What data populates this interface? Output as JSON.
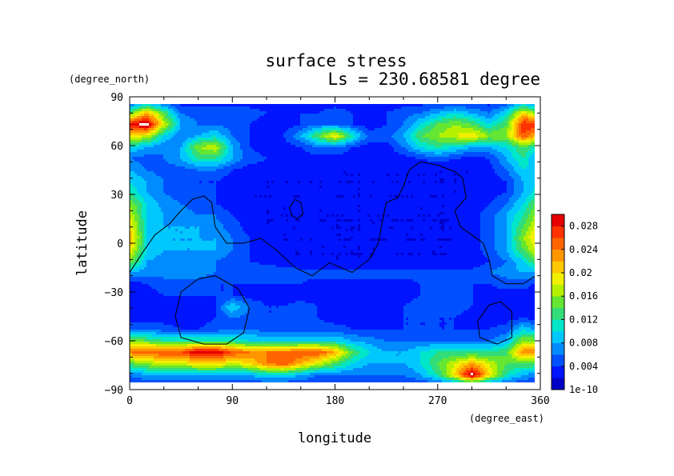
{
  "chart_data": {
    "type": "heatmap",
    "title": "surface stress",
    "subtitle": "Ls = 230.68581 degree",
    "xlabel": "longitude",
    "ylabel": "latitude",
    "x_unit": "(degree_east)",
    "y_unit": "(degree_north)",
    "xlim": [
      0,
      360
    ],
    "ylim": [
      -90,
      90
    ],
    "x_ticks": [
      "0",
      "90",
      "180",
      "270",
      "360"
    ],
    "y_ticks": [
      "90",
      "60",
      "30",
      "0",
      "−30",
      "−60",
      "−90"
    ],
    "x_tick_values": [
      0,
      90,
      180,
      270,
      360
    ],
    "y_tick_values": [
      90,
      60,
      30,
      0,
      -30,
      -60,
      -90
    ],
    "colorbar": {
      "min": 1e-10,
      "max": 0.03,
      "tick_labels": [
        "1e-10",
        "0.004",
        "0.008",
        "0.012",
        "0.016",
        "0.02",
        "0.024",
        "0.028"
      ],
      "tick_values": [
        0,
        0.004,
        0.008,
        0.012,
        0.016,
        0.02,
        0.024,
        0.028
      ]
    },
    "colors": [
      "#0000c8",
      "#0014ff",
      "#0050ff",
      "#008cff",
      "#00c8ff",
      "#00e6c8",
      "#32dc78",
      "#64e632",
      "#b4f000",
      "#f0f000",
      "#ffc800",
      "#ff9600",
      "#ff6400",
      "#ff3200",
      "#e60000",
      "#ffffff"
    ],
    "lat": [
      87,
      80,
      73,
      66,
      59,
      52,
      45,
      38,
      31,
      24,
      17,
      10,
      3,
      -4,
      -11,
      -18,
      -25,
      -32,
      -39,
      -46,
      -53,
      -60,
      -67,
      -74,
      -81,
      -87
    ],
    "lon": [
      0,
      15,
      30,
      45,
      60,
      75,
      90,
      105,
      120,
      135,
      150,
      165,
      180,
      195,
      210,
      225,
      240,
      255,
      270,
      285,
      300,
      315,
      330,
      345,
      360
    ],
    "z": [
      [
        0.004,
        0.006,
        0.004,
        0.003,
        0.003,
        0.003,
        0.003,
        0.003,
        0.003,
        0.003,
        0.003,
        0.003,
        0.003,
        0.003,
        0.003,
        0.003,
        0.003,
        0.003,
        0.003,
        0.003,
        0.003,
        0.003,
        0.004,
        0.006,
        0.004
      ],
      [
        0.014,
        0.022,
        0.014,
        0.006,
        0.005,
        0.005,
        0.005,
        0.005,
        0.004,
        0.004,
        0.004,
        0.004,
        0.005,
        0.004,
        0.004,
        0.004,
        0.005,
        0.006,
        0.008,
        0.01,
        0.008,
        0.006,
        0.01,
        0.02,
        0.014
      ],
      [
        0.028,
        0.032,
        0.018,
        0.008,
        0.006,
        0.006,
        0.005,
        0.004,
        0.003,
        0.003,
        0.004,
        0.006,
        0.006,
        0.004,
        0.003,
        0.004,
        0.006,
        0.01,
        0.014,
        0.016,
        0.014,
        0.01,
        0.014,
        0.028,
        0.028
      ],
      [
        0.02,
        0.018,
        0.01,
        0.006,
        0.008,
        0.01,
        0.006,
        0.004,
        0.003,
        0.004,
        0.008,
        0.014,
        0.02,
        0.012,
        0.005,
        0.005,
        0.008,
        0.014,
        0.016,
        0.018,
        0.02,
        0.016,
        0.016,
        0.026,
        0.02
      ],
      [
        0.01,
        0.008,
        0.006,
        0.008,
        0.016,
        0.018,
        0.008,
        0.004,
        0.003,
        0.003,
        0.004,
        0.006,
        0.006,
        0.004,
        0.003,
        0.003,
        0.006,
        0.01,
        0.012,
        0.01,
        0.008,
        0.008,
        0.01,
        0.014,
        0.01
      ],
      [
        0.006,
        0.005,
        0.006,
        0.008,
        0.012,
        0.012,
        0.008,
        0.005,
        0.004,
        0.003,
        0.003,
        0.003,
        0.003,
        0.003,
        0.003,
        0.003,
        0.003,
        0.004,
        0.005,
        0.004,
        0.003,
        0.004,
        0.008,
        0.012,
        0.006
      ],
      [
        0.008,
        0.006,
        0.005,
        0.005,
        0.006,
        0.006,
        0.004,
        0.003,
        0.003,
        0.003,
        0.003,
        0.003,
        0.002,
        0.002,
        0.002,
        0.002,
        0.002,
        0.002,
        0.002,
        0.002,
        0.002,
        0.003,
        0.006,
        0.01,
        0.008
      ],
      [
        0.01,
        0.008,
        0.006,
        0.004,
        0.004,
        0.004,
        0.003,
        0.003,
        0.002,
        0.002,
        0.002,
        0.002,
        0.002,
        0.002,
        0.002,
        0.002,
        0.002,
        0.002,
        0.002,
        0.002,
        0.002,
        0.003,
        0.004,
        0.008,
        0.01
      ],
      [
        0.012,
        0.008,
        0.006,
        0.005,
        0.004,
        0.004,
        0.003,
        0.002,
        0.002,
        0.002,
        0.002,
        0.002,
        0.002,
        0.002,
        0.002,
        0.002,
        0.002,
        0.002,
        0.002,
        0.002,
        0.002,
        0.003,
        0.004,
        0.008,
        0.012
      ],
      [
        0.016,
        0.01,
        0.007,
        0.006,
        0.005,
        0.004,
        0.003,
        0.002,
        0.002,
        0.002,
        0.002,
        0.002,
        0.002,
        0.002,
        0.002,
        0.002,
        0.002,
        0.002,
        0.002,
        0.002,
        0.003,
        0.004,
        0.006,
        0.01,
        0.016
      ],
      [
        0.018,
        0.01,
        0.008,
        0.007,
        0.006,
        0.006,
        0.004,
        0.003,
        0.002,
        0.002,
        0.002,
        0.002,
        0.002,
        0.002,
        0.002,
        0.002,
        0.002,
        0.002,
        0.002,
        0.002,
        0.003,
        0.005,
        0.008,
        0.012,
        0.018
      ],
      [
        0.02,
        0.01,
        0.008,
        0.008,
        0.008,
        0.007,
        0.005,
        0.003,
        0.002,
        0.002,
        0.002,
        0.002,
        0.002,
        0.002,
        0.002,
        0.002,
        0.002,
        0.002,
        0.002,
        0.002,
        0.003,
        0.005,
        0.008,
        0.014,
        0.02
      ],
      [
        0.022,
        0.01,
        0.008,
        0.008,
        0.008,
        0.008,
        0.006,
        0.004,
        0.003,
        0.002,
        0.002,
        0.002,
        0.002,
        0.002,
        0.002,
        0.002,
        0.002,
        0.002,
        0.002,
        0.002,
        0.003,
        0.005,
        0.008,
        0.016,
        0.022
      ],
      [
        0.02,
        0.01,
        0.008,
        0.008,
        0.008,
        0.008,
        0.006,
        0.004,
        0.003,
        0.002,
        0.002,
        0.002,
        0.002,
        0.002,
        0.002,
        0.002,
        0.002,
        0.002,
        0.002,
        0.002,
        0.003,
        0.005,
        0.008,
        0.014,
        0.02
      ],
      [
        0.016,
        0.008,
        0.007,
        0.006,
        0.006,
        0.006,
        0.005,
        0.004,
        0.003,
        0.002,
        0.002,
        0.002,
        0.002,
        0.002,
        0.002,
        0.002,
        0.002,
        0.002,
        0.002,
        0.002,
        0.002,
        0.004,
        0.006,
        0.01,
        0.016
      ],
      [
        0.008,
        0.007,
        0.007,
        0.007,
        0.007,
        0.006,
        0.006,
        0.006,
        0.006,
        0.006,
        0.005,
        0.005,
        0.005,
        0.005,
        0.005,
        0.005,
        0.005,
        0.005,
        0.005,
        0.005,
        0.005,
        0.006,
        0.007,
        0.008,
        0.008
      ],
      [
        0.003,
        0.004,
        0.005,
        0.005,
        0.005,
        0.004,
        0.004,
        0.004,
        0.004,
        0.004,
        0.004,
        0.003,
        0.003,
        0.003,
        0.003,
        0.003,
        0.003,
        0.004,
        0.004,
        0.004,
        0.004,
        0.004,
        0.005,
        0.005,
        0.003
      ],
      [
        0.003,
        0.003,
        0.004,
        0.004,
        0.004,
        0.004,
        0.004,
        0.003,
        0.003,
        0.003,
        0.003,
        0.003,
        0.003,
        0.003,
        0.003,
        0.003,
        0.003,
        0.004,
        0.006,
        0.005,
        0.004,
        0.003,
        0.003,
        0.003,
        0.003
      ],
      [
        0.003,
        0.003,
        0.004,
        0.003,
        0.003,
        0.004,
        0.01,
        0.006,
        0.004,
        0.004,
        0.005,
        0.004,
        0.003,
        0.003,
        0.003,
        0.003,
        0.004,
        0.005,
        0.006,
        0.005,
        0.004,
        0.003,
        0.003,
        0.003,
        0.003
      ],
      [
        0.003,
        0.003,
        0.003,
        0.003,
        0.003,
        0.004,
        0.006,
        0.005,
        0.004,
        0.004,
        0.004,
        0.004,
        0.003,
        0.003,
        0.003,
        0.003,
        0.004,
        0.004,
        0.004,
        0.004,
        0.003,
        0.003,
        0.003,
        0.004,
        0.003
      ],
      [
        0.006,
        0.006,
        0.005,
        0.004,
        0.004,
        0.005,
        0.006,
        0.006,
        0.005,
        0.005,
        0.005,
        0.005,
        0.005,
        0.004,
        0.004,
        0.004,
        0.004,
        0.004,
        0.004,
        0.004,
        0.004,
        0.004,
        0.005,
        0.01,
        0.006
      ],
      [
        0.016,
        0.014,
        0.012,
        0.012,
        0.012,
        0.012,
        0.012,
        0.01,
        0.01,
        0.01,
        0.01,
        0.01,
        0.01,
        0.008,
        0.007,
        0.006,
        0.006,
        0.006,
        0.006,
        0.006,
        0.006,
        0.006,
        0.008,
        0.016,
        0.016
      ],
      [
        0.024,
        0.026,
        0.026,
        0.026,
        0.03,
        0.03,
        0.026,
        0.024,
        0.024,
        0.024,
        0.026,
        0.026,
        0.022,
        0.014,
        0.01,
        0.008,
        0.008,
        0.01,
        0.012,
        0.012,
        0.012,
        0.012,
        0.014,
        0.024,
        0.024
      ],
      [
        0.014,
        0.016,
        0.018,
        0.018,
        0.02,
        0.02,
        0.018,
        0.02,
        0.024,
        0.026,
        0.022,
        0.018,
        0.014,
        0.01,
        0.008,
        0.008,
        0.008,
        0.01,
        0.014,
        0.018,
        0.022,
        0.018,
        0.014,
        0.014,
        0.014
      ],
      [
        0.006,
        0.008,
        0.008,
        0.008,
        0.008,
        0.008,
        0.008,
        0.008,
        0.01,
        0.01,
        0.008,
        0.006,
        0.006,
        0.006,
        0.006,
        0.006,
        0.006,
        0.008,
        0.012,
        0.02,
        0.032,
        0.02,
        0.012,
        0.008,
        0.006
      ],
      [
        0.004,
        0.004,
        0.004,
        0.004,
        0.004,
        0.004,
        0.004,
        0.004,
        0.004,
        0.004,
        0.004,
        0.004,
        0.004,
        0.004,
        0.004,
        0.004,
        0.004,
        0.004,
        0.004,
        0.006,
        0.008,
        0.006,
        0.004,
        0.004,
        0.004
      ]
    ],
    "contours": [
      [
        [
          0,
          -18
        ],
        [
          12,
          -5
        ],
        [
          22,
          5
        ],
        [
          35,
          12
        ],
        [
          45,
          20
        ],
        [
          55,
          27
        ],
        [
          65,
          29
        ],
        [
          72,
          25
        ],
        [
          75,
          10
        ],
        [
          85,
          0
        ],
        [
          100,
          0
        ],
        [
          115,
          3
        ],
        [
          130,
          -5
        ],
        [
          145,
          -15
        ],
        [
          160,
          -20
        ],
        [
          175,
          -12
        ],
        [
          195,
          -18
        ],
        [
          210,
          -10
        ],
        [
          218,
          0
        ],
        [
          222,
          15
        ],
        [
          225,
          25
        ],
        [
          235,
          28
        ],
        [
          240,
          35
        ],
        [
          245,
          45
        ],
        [
          255,
          50
        ],
        [
          270,
          48
        ],
        [
          285,
          44
        ],
        [
          292,
          40
        ],
        [
          295,
          28
        ],
        [
          285,
          20
        ],
        [
          290,
          10
        ],
        [
          300,
          5
        ],
        [
          310,
          0
        ],
        [
          315,
          -10
        ],
        [
          318,
          -20
        ],
        [
          330,
          -25
        ],
        [
          345,
          -25
        ],
        [
          360,
          -18
        ]
      ],
      [
        [
          140,
          22
        ],
        [
          145,
          27
        ],
        [
          150,
          25
        ],
        [
          152,
          18
        ],
        [
          147,
          15
        ],
        [
          142,
          17
        ],
        [
          140,
          22
        ]
      ],
      [
        [
          40,
          -45
        ],
        [
          45,
          -30
        ],
        [
          60,
          -22
        ],
        [
          75,
          -20
        ],
        [
          95,
          -28
        ],
        [
          105,
          -40
        ],
        [
          100,
          -55
        ],
        [
          85,
          -62
        ],
        [
          65,
          -62
        ],
        [
          45,
          -58
        ],
        [
          40,
          -45
        ]
      ],
      [
        [
          305,
          -48
        ],
        [
          315,
          -38
        ],
        [
          325,
          -36
        ],
        [
          335,
          -42
        ],
        [
          335,
          -58
        ],
        [
          322,
          -62
        ],
        [
          307,
          -58
        ],
        [
          305,
          -48
        ]
      ]
    ]
  }
}
